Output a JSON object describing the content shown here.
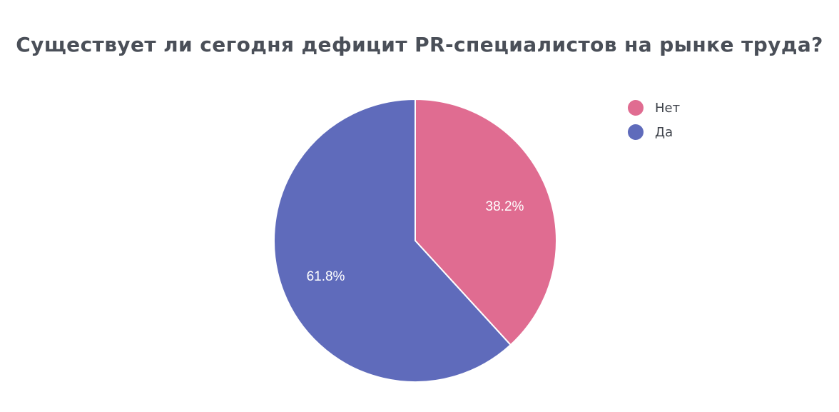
{
  "chart_data": {
    "type": "pie",
    "title": "Существует ли сегодня дефицит PR-специалистов на рынке труда?",
    "slices": [
      {
        "label": "Нет",
        "value": 38.2,
        "display": "38.2%",
        "color": "#e06c91"
      },
      {
        "label": "Да",
        "value": 61.8,
        "display": "61.8%",
        "color": "#5f6bbb"
      }
    ],
    "legend_position": "top-right"
  }
}
